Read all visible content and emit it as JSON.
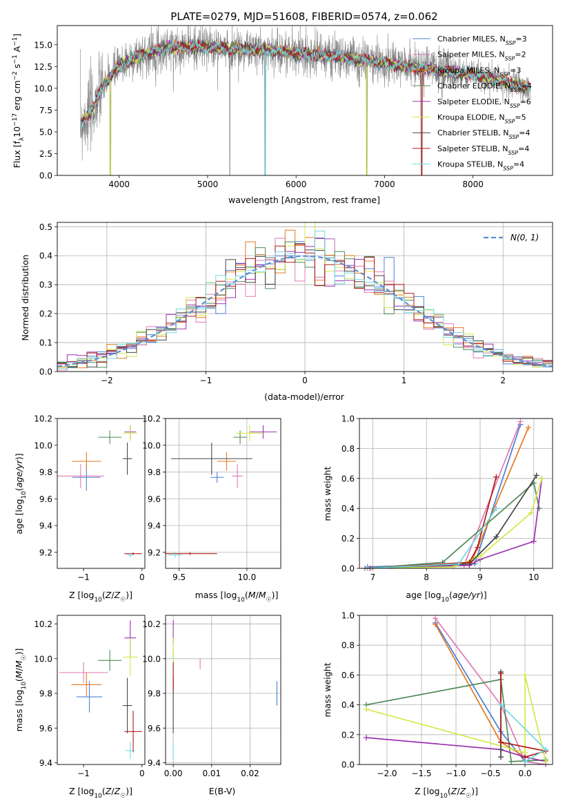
{
  "colors": {
    "chabrier_miles": "#4a7fd4",
    "salpeter_miles": "#e07ab3",
    "kroupa_miles": "#e6781e",
    "chabrier_elodie": "#4e8a58",
    "salpeter_elodie": "#9a30ae",
    "kroupa_elodie": "#d2e84a",
    "chabrier_stelib": "#444444",
    "salpeter_stelib": "#b01818",
    "kroupa_stelib": "#72d8df",
    "data": "#808080",
    "gaussian": "#5b8fd6",
    "grid": "#b0b0b0"
  },
  "legend_entries": [
    {
      "key": "chabrier_miles",
      "label": "Chabrier MILES, N",
      "n": "=3"
    },
    {
      "key": "salpeter_miles",
      "label": "Salpeter MILES, N",
      "n": "=2"
    },
    {
      "key": "kroupa_miles",
      "label": "Kroupa MILES, N",
      "n": "=3"
    },
    {
      "key": "chabrier_elodie",
      "label": "Chabrier ELODIE, N",
      "n": "=4"
    },
    {
      "key": "salpeter_elodie",
      "label": "Salpeter ELODIE, N",
      "n": "=6"
    },
    {
      "key": "kroupa_elodie",
      "label": "Kroupa ELODIE, N",
      "n": "=5"
    },
    {
      "key": "chabrier_stelib",
      "label": "Chabrier STELIB, N",
      "n": "=4"
    },
    {
      "key": "salpeter_stelib",
      "label": "Salpeter STELIB, N",
      "n": "=4"
    },
    {
      "key": "kroupa_stelib",
      "label": "Kroupa STELIB, N",
      "n": "=4"
    }
  ],
  "chart_data": [
    {
      "id": "spectrum",
      "type": "line",
      "title": "PLATE=0279, MJD=51608, FIBERID=0574, z=0.062",
      "xlabel": "wavelength [Angstrom, rest frame]",
      "ylabel": "Flux [f",
      "xlim": [
        3300,
        8900
      ],
      "ylim": [
        0,
        17.2
      ],
      "xticks": [
        4000,
        5000,
        6000,
        7000,
        8000
      ],
      "yticks": [
        0.0,
        2.5,
        5.0,
        7.5,
        10.0,
        12.5,
        15.0
      ],
      "continuum": {
        "x": [
          3550,
          3700,
          3800,
          3950,
          4100,
          4300,
          4500,
          4800,
          5200,
          5600,
          6000,
          6400,
          6800,
          7200,
          7600,
          8000,
          8400,
          8700
        ],
        "y": [
          5.8,
          7.6,
          10.0,
          12.0,
          13.2,
          14.0,
          14.6,
          14.8,
          14.6,
          14.4,
          14.1,
          13.7,
          13.2,
          12.6,
          12.1,
          11.6,
          10.6,
          9.8
        ]
      },
      "data_dips": [
        3900,
        5250,
        5650,
        6800,
        7420
      ],
      "legend_position": "upper right"
    },
    {
      "id": "residuals",
      "type": "histogram",
      "xlabel": "(data-model)/error",
      "ylabel": "Normed distribution",
      "xlim": [
        -2.5,
        2.5
      ],
      "ylim": [
        0,
        0.515
      ],
      "xticks": [
        -2,
        -1,
        0,
        1,
        2
      ],
      "yticks": [
        0.0,
        0.1,
        0.2,
        0.3,
        0.4,
        0.5
      ],
      "bin_width": 0.1,
      "gaussian_label": "N(0, 1)",
      "legend_position": "upper right"
    },
    {
      "id": "age_vs_Z",
      "type": "errorbar",
      "xlabel": "Z [log10(Z/Z☉)]",
      "ylabel": "age [log10(age/yr)]",
      "xlim": [
        -1.45,
        0.05
      ],
      "ylim": [
        9.08,
        10.2
      ],
      "xticks": [
        -1,
        0
      ],
      "yticks": [
        9.2,
        9.4,
        9.6,
        9.8,
        10.0,
        10.2
      ],
      "points": [
        {
          "key": "chabrier_miles",
          "x": -0.95,
          "y": 9.76,
          "xerr": 0.24,
          "yerr": 0.1
        },
        {
          "key": "salpeter_miles",
          "x": -1.05,
          "y": 9.77,
          "xerr": 0.4,
          "yerr": 0.09
        },
        {
          "key": "kroupa_miles",
          "x": -0.95,
          "y": 9.88,
          "xerr": 0.25,
          "yerr": 0.07
        },
        {
          "key": "chabrier_elodie",
          "x": -0.55,
          "y": 10.06,
          "xerr": 0.2,
          "yerr": 0.05
        },
        {
          "key": "salpeter_elodie",
          "x": -0.2,
          "y": 10.1,
          "xerr": 0.1,
          "yerr": 0.05
        },
        {
          "key": "kroupa_elodie",
          "x": -0.2,
          "y": 10.09,
          "xerr": 0.12,
          "yerr": 0.06
        },
        {
          "key": "chabrier_stelib",
          "x": -0.25,
          "y": 9.9,
          "xerr": 0.08,
          "yerr": 0.12
        },
        {
          "key": "salpeter_stelib",
          "x": -0.15,
          "y": 9.19,
          "xerr": 0.15,
          "yerr": 0.01
        },
        {
          "key": "kroupa_stelib",
          "x": -0.2,
          "y": 9.18,
          "xerr": 0.05,
          "yerr": 0.02
        }
      ]
    },
    {
      "id": "age_vs_mass",
      "type": "errorbar",
      "xlabel": "mass [log10(M/M☉)]",
      "ylabel": "",
      "xlim": [
        9.4,
        10.25
      ],
      "ylim": [
        9.08,
        10.2
      ],
      "xticks": [
        9.5,
        10.0
      ],
      "yticks": [
        9.2,
        9.4,
        9.6,
        9.8,
        10.0,
        10.2
      ],
      "points": [
        {
          "key": "chabrier_miles",
          "x": 9.78,
          "y": 9.76,
          "xerr": 0.05,
          "yerr": 0.04
        },
        {
          "key": "salpeter_miles",
          "x": 9.93,
          "y": 9.77,
          "xerr": 0.04,
          "yerr": 0.09
        },
        {
          "key": "kroupa_miles",
          "x": 9.85,
          "y": 9.88,
          "xerr": 0.07,
          "yerr": 0.07
        },
        {
          "key": "chabrier_elodie",
          "x": 9.95,
          "y": 10.06,
          "xerr": 0.05,
          "yerr": 0.05
        },
        {
          "key": "salpeter_elodie",
          "x": 10.12,
          "y": 10.1,
          "xerr": 0.1,
          "yerr": 0.05
        },
        {
          "key": "kroupa_elodie",
          "x": 10.02,
          "y": 10.09,
          "xerr": 0.1,
          "yerr": 0.06
        },
        {
          "key": "chabrier_stelib",
          "x": 9.74,
          "y": 9.9,
          "xerr": 0.3,
          "yerr": 0.12
        },
        {
          "key": "salpeter_stelib",
          "x": 9.58,
          "y": 9.19,
          "xerr": 0.2,
          "yerr": 0.01
        },
        {
          "key": "kroupa_stelib",
          "x": 9.47,
          "y": 9.18,
          "xerr": 0.05,
          "yerr": 0.02
        }
      ]
    },
    {
      "id": "mass_weight_vs_age",
      "type": "line",
      "xlabel": "age  [log10(age/yr)]",
      "ylabel": "mass weight",
      "xlim": [
        6.75,
        10.35
      ],
      "ylim": [
        0,
        1.0
      ],
      "xticks": [
        7,
        8,
        9,
        10
      ],
      "yticks": [
        0.0,
        0.2,
        0.4,
        0.6,
        0.8,
        1.0
      ],
      "series": [
        {
          "key": "chabrier_miles",
          "x": [
            6.9,
            8.9,
            9.75
          ],
          "y": [
            0.01,
            0.03,
            0.96
          ]
        },
        {
          "key": "salpeter_miles",
          "x": [
            6.85,
            8.7,
            9.75
          ],
          "y": [
            0.0,
            0.02,
            0.98
          ]
        },
        {
          "key": "kroupa_miles",
          "x": [
            7.0,
            8.6,
            8.85,
            9.9
          ],
          "y": [
            0.0,
            0.03,
            0.05,
            0.94
          ]
        },
        {
          "key": "chabrier_elodie",
          "x": [
            6.9,
            8.3,
            10.0,
            10.1
          ],
          "y": [
            0.0,
            0.04,
            0.57,
            0.4
          ]
        },
        {
          "key": "salpeter_elodie",
          "x": [
            6.95,
            8.8,
            9.0,
            10.0,
            10.15
          ],
          "y": [
            0.0,
            0.02,
            0.06,
            0.18,
            0.6
          ]
        },
        {
          "key": "kroupa_elodie",
          "x": [
            6.9,
            8.5,
            9.0,
            9.95,
            10.15
          ],
          "y": [
            0.0,
            0.01,
            0.08,
            0.37,
            0.6
          ]
        },
        {
          "key": "chabrier_stelib",
          "x": [
            6.9,
            8.8,
            9.3,
            10.05
          ],
          "y": [
            0.0,
            0.03,
            0.21,
            0.62
          ]
        },
        {
          "key": "salpeter_stelib",
          "x": [
            6.9,
            8.8,
            8.95,
            9.3
          ],
          "y": [
            0.0,
            0.04,
            0.14,
            0.61
          ]
        },
        {
          "key": "kroupa_stelib",
          "x": [
            6.9,
            8.6,
            9.3
          ],
          "y": [
            0.0,
            0.03,
            0.4
          ]
        }
      ]
    },
    {
      "id": "mass_vs_Z",
      "type": "errorbar",
      "xlabel": "Z [log10(Z/Z☉)]",
      "ylabel": "mass [log10(M/M☉)]",
      "xlim": [
        -1.45,
        0.05
      ],
      "ylim": [
        9.39,
        10.25
      ],
      "xticks": [
        -1,
        0
      ],
      "yticks": [
        9.4,
        9.6,
        9.8,
        10.0,
        10.2
      ],
      "points": [
        {
          "key": "chabrier_miles",
          "x": -0.9,
          "y": 9.78,
          "xerr": 0.22,
          "yerr": 0.09
        },
        {
          "key": "salpeter_miles",
          "x": -1.0,
          "y": 9.92,
          "xerr": 0.42,
          "yerr": 0.06
        },
        {
          "key": "kroupa_miles",
          "x": -0.95,
          "y": 9.85,
          "xerr": 0.26,
          "yerr": 0.07
        },
        {
          "key": "chabrier_elodie",
          "x": -0.55,
          "y": 9.99,
          "xerr": 0.2,
          "yerr": 0.06
        },
        {
          "key": "salpeter_elodie",
          "x": -0.2,
          "y": 10.12,
          "xerr": 0.1,
          "yerr": 0.1
        },
        {
          "key": "kroupa_elodie",
          "x": -0.2,
          "y": 10.01,
          "xerr": 0.12,
          "yerr": 0.11
        },
        {
          "key": "chabrier_stelib",
          "x": -0.25,
          "y": 9.73,
          "xerr": 0.08,
          "yerr": 0.16
        },
        {
          "key": "salpeter_stelib",
          "x": -0.15,
          "y": 9.58,
          "xerr": 0.15,
          "yerr": 0.12
        },
        {
          "key": "kroupa_stelib",
          "x": -0.2,
          "y": 9.47,
          "xerr": 0.08,
          "yerr": 0.05
        }
      ]
    },
    {
      "id": "mass_vs_ebv",
      "type": "errorbar",
      "xlabel": "E(B-V)",
      "ylabel": "",
      "xlim": [
        -0.002,
        0.028
      ],
      "ylim": [
        9.39,
        10.25
      ],
      "xticks": [
        0.0,
        0.01,
        0.02
      ],
      "yticks": [
        9.4,
        9.6,
        9.8,
        10.0,
        10.2
      ],
      "points": [
        {
          "key": "chabrier_miles",
          "x": 0.027,
          "y": 9.8,
          "xerr": 0,
          "yerr": 0.07
        },
        {
          "key": "salpeter_miles",
          "x": 0.007,
          "y": 9.97,
          "xerr": 0,
          "yerr": 0.03
        },
        {
          "key": "kroupa_miles",
          "x": 0.0,
          "y": 9.85,
          "xerr": 0,
          "yerr": 0.07
        },
        {
          "key": "chabrier_elodie",
          "x": 0.0,
          "y": 9.99,
          "xerr": 0,
          "yerr": 0.06
        },
        {
          "key": "salpeter_elodie",
          "x": 0.0,
          "y": 10.15,
          "xerr": 0,
          "yerr": 0.07
        },
        {
          "key": "kroupa_elodie",
          "x": 0.0,
          "y": 10.01,
          "xerr": 0,
          "yerr": 0.11
        },
        {
          "key": "chabrier_stelib",
          "x": 0.0,
          "y": 9.73,
          "xerr": 0,
          "yerr": 0.16
        },
        {
          "key": "salpeter_stelib",
          "x": 0.0,
          "y": 9.9,
          "xerr": 0,
          "yerr": 0.08
        },
        {
          "key": "kroupa_stelib",
          "x": 0.0,
          "y": 9.47,
          "xerr": 0,
          "yerr": 0.05
        }
      ]
    },
    {
      "id": "mass_weight_vs_Z",
      "type": "line",
      "xlabel": "Z [log10(Z/Z☉)]",
      "ylabel": "mass weight",
      "xlim": [
        -2.4,
        0.4
      ],
      "ylim": [
        0,
        1.0
      ],
      "xticks": [
        -2.0,
        -1.5,
        -1.0,
        -0.5,
        0.0
      ],
      "yticks": [
        0.0,
        0.2,
        0.4,
        0.6,
        0.8,
        1.0
      ],
      "series": [
        {
          "key": "chabrier_miles",
          "x": [
            -1.3,
            -0.35,
            0.0,
            0.3
          ],
          "y": [
            0.95,
            0.22,
            0.02,
            0.0
          ]
        },
        {
          "key": "salpeter_miles",
          "x": [
            -1.3,
            -0.35,
            0.0,
            0.3
          ],
          "y": [
            0.98,
            0.4,
            0.02,
            0.0
          ]
        },
        {
          "key": "kroupa_miles",
          "x": [
            -1.3,
            -0.35,
            0.0,
            0.3
          ],
          "y": [
            0.94,
            0.15,
            0.05,
            0.02
          ]
        },
        {
          "key": "chabrier_elodie",
          "x": [
            -2.3,
            -0.35,
            -0.2,
            0.3
          ],
          "y": [
            0.4,
            0.57,
            0.02,
            0.03
          ]
        },
        {
          "key": "salpeter_elodie",
          "x": [
            -2.3,
            -0.35,
            0.0,
            0.3
          ],
          "y": [
            0.18,
            0.1,
            0.05,
            0.02
          ]
        },
        {
          "key": "kroupa_elodie",
          "x": [
            -2.3,
            0.0,
            0.0,
            0.3
          ],
          "y": [
            0.37,
            0.08,
            0.6,
            0.02
          ]
        },
        {
          "key": "chabrier_stelib",
          "x": [
            -0.35,
            -0.35,
            -0.35,
            -0.35
          ],
          "y": [
            0.62,
            0.15,
            0.1,
            0.05
          ]
        },
        {
          "key": "salpeter_stelib",
          "x": [
            -0.35,
            -0.35,
            0.3,
            0.0
          ],
          "y": [
            0.61,
            0.15,
            0.09,
            0.05
          ]
        },
        {
          "key": "kroupa_stelib",
          "x": [
            -0.35,
            0.3,
            0.0
          ],
          "y": [
            0.4,
            0.1,
            0.02
          ]
        }
      ]
    }
  ]
}
